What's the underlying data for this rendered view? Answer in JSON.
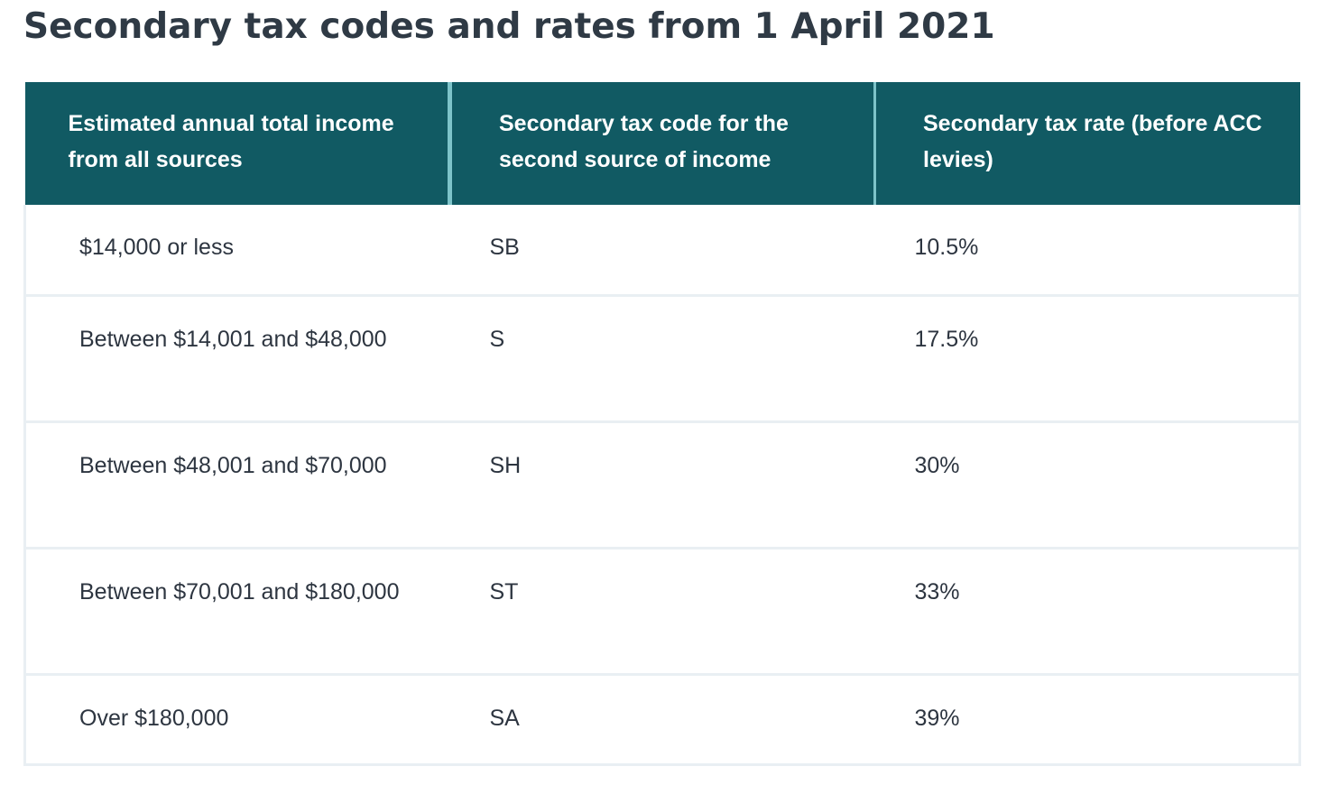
{
  "page": {
    "title": "Secondary tax codes and rates from 1 April 2021"
  },
  "table": {
    "headers": [
      "Estimated annual total income from all sources",
      "Secondary tax code for the second source of income",
      "Secondary tax rate (before ACC levies)"
    ],
    "rows": [
      {
        "income": "$14,000 or less",
        "code": "SB",
        "rate": "10.5%"
      },
      {
        "income": "Between $14,001 and $48,000",
        "code": "S",
        "rate": "17.5%"
      },
      {
        "income": "Between $48,001 and $70,000",
        "code": "SH",
        "rate": "30%"
      },
      {
        "income": "Between $70,001 and $180,000",
        "code": "ST",
        "rate": "33%"
      },
      {
        "income": "Over $180,000",
        "code": "SA",
        "rate": "39%"
      }
    ]
  },
  "colors": {
    "header_background": "#115a63",
    "header_divider": "#7dc3c9",
    "row_border": "#e9eff3",
    "title_text": "#2f3a45"
  }
}
